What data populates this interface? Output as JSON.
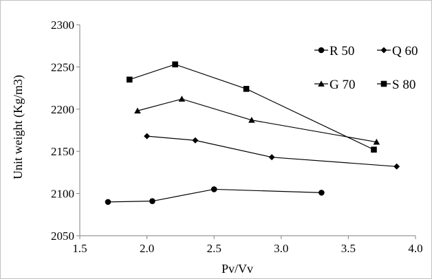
{
  "chart_data": {
    "type": "line",
    "title": "",
    "xlabel": "Pv/Vv",
    "ylabel": "Unit weight (Kg/m3)",
    "xlim": [
      1.5,
      4.0
    ],
    "ylim": [
      2050,
      2300
    ],
    "x_ticks": [
      "1.5",
      "2.0",
      "2.5",
      "3.0",
      "3.5",
      "4.0"
    ],
    "y_ticks": [
      "2050",
      "2100",
      "2150",
      "2200",
      "2250",
      "2300"
    ],
    "grid": false,
    "series": [
      {
        "name": "R 50",
        "marker": "circle",
        "x": [
          1.71,
          2.04,
          2.5,
          3.3
        ],
        "y": [
          2090,
          2091,
          2105,
          2101
        ]
      },
      {
        "name": "Q 60",
        "marker": "diamond",
        "x": [
          2.0,
          2.36,
          2.93,
          3.86
        ],
        "y": [
          2168,
          2163,
          2143,
          2132
        ]
      },
      {
        "name": "G 70",
        "marker": "triangle",
        "x": [
          1.93,
          2.26,
          2.78,
          3.71
        ],
        "y": [
          2198,
          2212,
          2187,
          2161
        ]
      },
      {
        "name": "S 80",
        "marker": "square",
        "x": [
          1.87,
          2.21,
          2.74,
          3.69
        ],
        "y": [
          2235,
          2253,
          2224,
          2152
        ]
      }
    ]
  }
}
